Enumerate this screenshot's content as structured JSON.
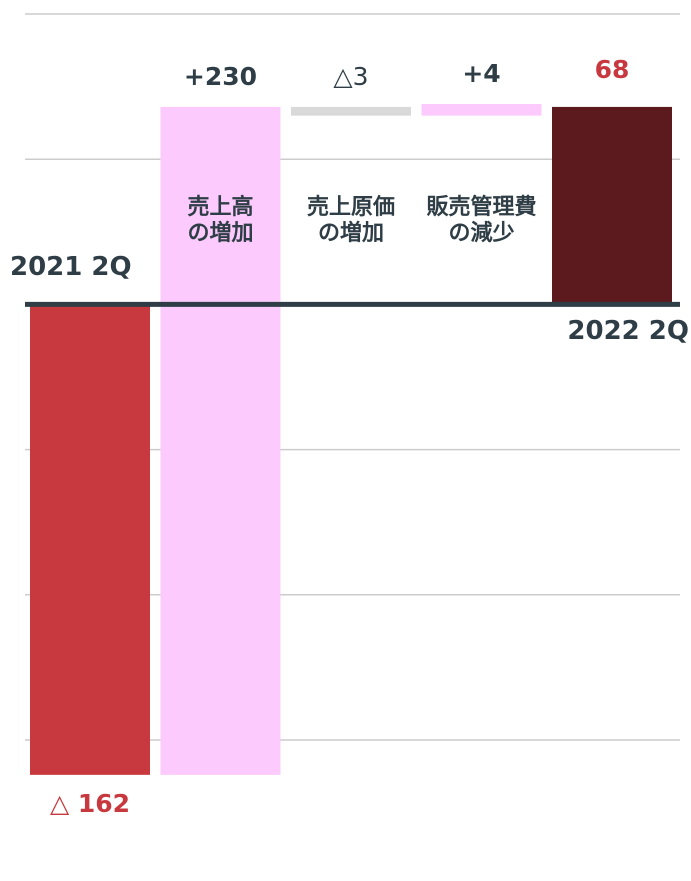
{
  "chart_data": {
    "type": "waterfall",
    "categories": [
      "2021 2Q",
      "売上高\nの増加",
      "売上原価\nの増加",
      "販売管理費\nの減少",
      "2022 2Q"
    ],
    "values": [
      -162,
      230,
      -3,
      4,
      68
    ],
    "value_labels": [
      "△ 162",
      "+230",
      "△3",
      "+4",
      "68"
    ],
    "measure": [
      "absolute",
      "relative",
      "relative",
      "relative",
      "total"
    ],
    "colors": [
      "#c8393f",
      "#fccafd",
      "#d9d9d9",
      "#fccafd",
      "#5c1a1e"
    ],
    "ylim": [
      -150,
      100
    ],
    "yticks": [
      100,
      50,
      0,
      -50,
      -100,
      -150
    ],
    "grid": true
  }
}
